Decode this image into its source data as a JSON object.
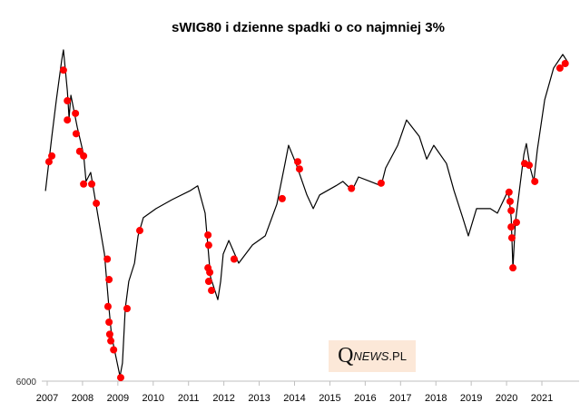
{
  "chart_data": {
    "type": "line",
    "title": "sWIG80 i dzienne spadki o co najmniej 3%",
    "xlabel": "",
    "ylabel": "",
    "x_ticks": [
      "2007",
      "2008",
      "2009",
      "2010",
      "2011",
      "2012",
      "2013",
      "2014",
      "2015",
      "2016",
      "2017",
      "2018",
      "2019",
      "2020",
      "2021"
    ],
    "y_ticks": [
      "6000"
    ],
    "xlim": [
      2006.9,
      2021.9
    ],
    "ylim": [
      6000,
      24000
    ],
    "y_scale": "log",
    "grid": false,
    "legend": "none",
    "colors": {
      "line": "#000000",
      "markers": "#ff0000"
    },
    "series": [
      {
        "type": "line",
        "points": [
          [
            2006.95,
            13300
          ],
          [
            2007.13,
            16700
          ],
          [
            2007.26,
            19480
          ],
          [
            2007.41,
            23000
          ],
          [
            2007.46,
            24000
          ],
          [
            2007.57,
            20230
          ],
          [
            2007.62,
            18050
          ],
          [
            2007.67,
            19850
          ],
          [
            2007.85,
            17370
          ],
          [
            2008.03,
            15500
          ],
          [
            2008.1,
            13840
          ],
          [
            2008.23,
            14370
          ],
          [
            2008.49,
            11440
          ],
          [
            2008.62,
            10210
          ],
          [
            2008.75,
            8130
          ],
          [
            2008.82,
            7260
          ],
          [
            2008.93,
            6720
          ],
          [
            2009.06,
            6120
          ],
          [
            2009.13,
            6470
          ],
          [
            2009.21,
            8130
          ],
          [
            2009.31,
            9110
          ],
          [
            2009.47,
            9830
          ],
          [
            2009.57,
            11020
          ],
          [
            2009.72,
            11890
          ],
          [
            2010.08,
            12350
          ],
          [
            2010.54,
            12830
          ],
          [
            2011.06,
            13330
          ],
          [
            2011.26,
            13590
          ],
          [
            2011.47,
            12120
          ],
          [
            2011.62,
            9280
          ],
          [
            2011.83,
            8440
          ],
          [
            2011.91,
            9110
          ],
          [
            2011.98,
            10210
          ],
          [
            2012.14,
            10810
          ],
          [
            2012.42,
            9830
          ],
          [
            2012.81,
            10610
          ],
          [
            2013.17,
            11020
          ],
          [
            2013.5,
            12580
          ],
          [
            2013.73,
            14920
          ],
          [
            2013.83,
            16100
          ],
          [
            2014.04,
            14920
          ],
          [
            2014.35,
            13080
          ],
          [
            2014.53,
            12350
          ],
          [
            2014.71,
            13080
          ],
          [
            2015.17,
            13590
          ],
          [
            2015.37,
            13840
          ],
          [
            2015.63,
            13330
          ],
          [
            2015.81,
            14100
          ],
          [
            2016.14,
            13840
          ],
          [
            2016.45,
            13590
          ],
          [
            2016.58,
            14640
          ],
          [
            2016.92,
            16100
          ],
          [
            2017.17,
            17900
          ],
          [
            2017.53,
            16720
          ],
          [
            2017.74,
            15200
          ],
          [
            2017.94,
            16100
          ],
          [
            2018.3,
            14920
          ],
          [
            2018.51,
            13330
          ],
          [
            2018.76,
            11890
          ],
          [
            2018.92,
            11020
          ],
          [
            2019.15,
            12350
          ],
          [
            2019.54,
            12350
          ],
          [
            2019.74,
            12120
          ],
          [
            2020.05,
            13330
          ],
          [
            2020.13,
            11890
          ],
          [
            2020.18,
            9640
          ],
          [
            2020.25,
            11660
          ],
          [
            2020.49,
            15500
          ],
          [
            2020.56,
            16220
          ],
          [
            2020.67,
            14640
          ],
          [
            2020.77,
            13840
          ],
          [
            2020.87,
            15800
          ],
          [
            2021.08,
            19480
          ],
          [
            2021.33,
            22240
          ],
          [
            2021.59,
            23550
          ],
          [
            2021.72,
            22870
          ]
        ]
      },
      {
        "type": "scatter",
        "points": [
          [
            2007.05,
            15030
          ],
          [
            2007.13,
            15400
          ],
          [
            2007.46,
            22050
          ],
          [
            2007.57,
            19400
          ],
          [
            2007.57,
            17900
          ],
          [
            2007.8,
            18400
          ],
          [
            2007.82,
            16900
          ],
          [
            2007.92,
            15700
          ],
          [
            2008.03,
            15400
          ],
          [
            2008.03,
            13690
          ],
          [
            2008.26,
            13690
          ],
          [
            2008.39,
            12630
          ],
          [
            2008.7,
            10000
          ],
          [
            2008.75,
            9180
          ],
          [
            2008.72,
            8200
          ],
          [
            2008.75,
            7680
          ],
          [
            2008.77,
            7300
          ],
          [
            2008.8,
            7100
          ],
          [
            2008.88,
            6840
          ],
          [
            2009.08,
            6090
          ],
          [
            2009.26,
            8130
          ],
          [
            2009.62,
            11270
          ],
          [
            2011.55,
            11060
          ],
          [
            2011.57,
            10600
          ],
          [
            2011.55,
            9640
          ],
          [
            2011.6,
            9460
          ],
          [
            2011.57,
            9110
          ],
          [
            2011.65,
            8770
          ],
          [
            2012.29,
            10000
          ],
          [
            2013.65,
            12880
          ],
          [
            2014.09,
            15030
          ],
          [
            2014.14,
            14580
          ],
          [
            2015.61,
            13440
          ],
          [
            2016.45,
            13740
          ],
          [
            2020.07,
            13230
          ],
          [
            2020.1,
            12730
          ],
          [
            2020.13,
            12250
          ],
          [
            2020.13,
            11440
          ],
          [
            2020.15,
            10930
          ],
          [
            2020.18,
            9640
          ],
          [
            2020.28,
            11660
          ],
          [
            2020.51,
            14920
          ],
          [
            2020.64,
            14810
          ],
          [
            2020.8,
            13840
          ],
          [
            2021.51,
            22240
          ],
          [
            2021.66,
            22670
          ]
        ]
      }
    ]
  },
  "logo": {
    "q": "Q",
    "news": "NEWS",
    "pl": ".PL"
  }
}
